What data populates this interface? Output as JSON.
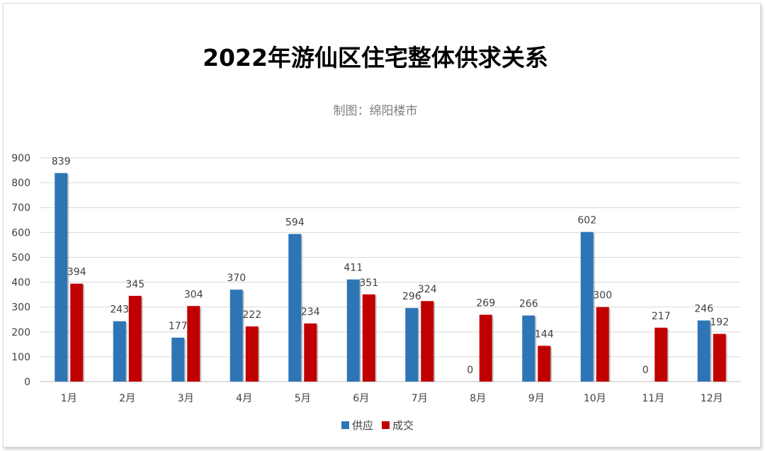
{
  "chart_data": {
    "type": "bar",
    "title": "2022年游仙区住宅整体供求关系",
    "subtitle": "制图：绵阳楼市",
    "categories": [
      "1月",
      "2月",
      "3月",
      "4月",
      "5月",
      "6月",
      "7月",
      "8月",
      "9月",
      "10月",
      "11月",
      "12月"
    ],
    "series": [
      {
        "name": "供应",
        "color": "#2e75b6",
        "values": [
          839,
          243,
          177,
          370,
          594,
          411,
          296,
          0,
          266,
          602,
          0,
          246
        ]
      },
      {
        "name": "成交",
        "color": "#c00000",
        "values": [
          394,
          345,
          304,
          222,
          234,
          351,
          324,
          269,
          144,
          300,
          217,
          192
        ]
      }
    ],
    "ylim": [
      0,
      900
    ],
    "yticks": [
      "0",
      "100",
      "200",
      "300",
      "400",
      "500",
      "600",
      "700",
      "800",
      "900"
    ],
    "grid": true,
    "legend": "bottom-center"
  }
}
